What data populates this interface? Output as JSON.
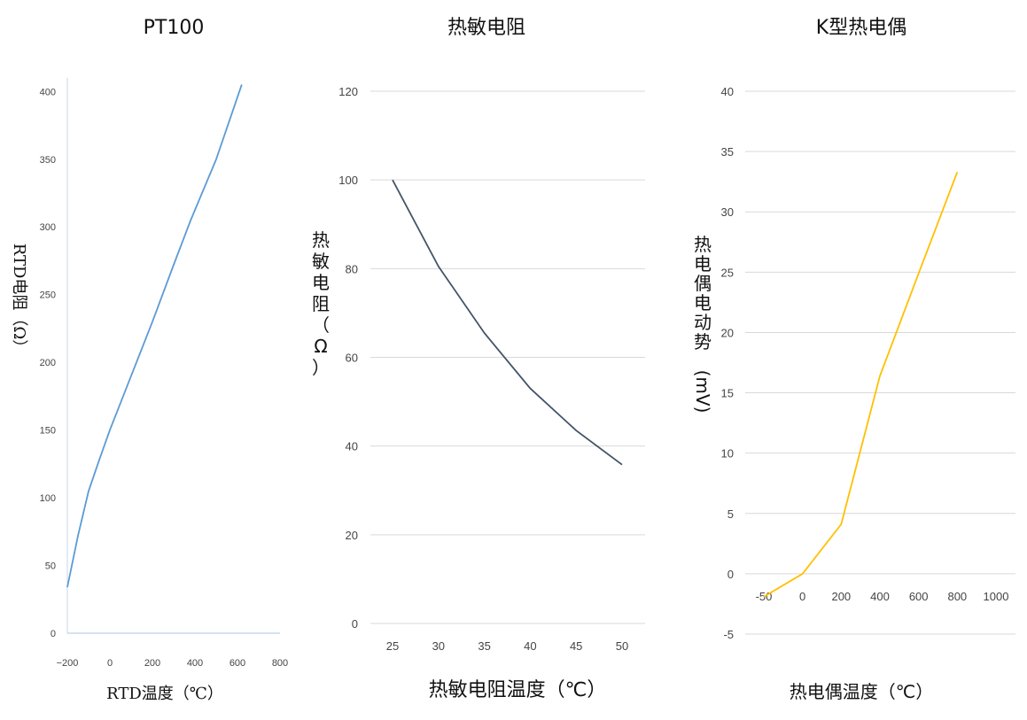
{
  "chart_data": [
    {
      "type": "line",
      "title": "PT100",
      "xlabel": "RTD温度（℃）",
      "ylabel": "RTD电阻（Ω）",
      "x_ticks": [
        "-200",
        "0",
        "200",
        "400",
        "600",
        "800"
      ],
      "y_ticks": [
        "0",
        "50",
        "100",
        "150",
        "200",
        "250",
        "300",
        "350",
        "400"
      ],
      "xlim": [
        -200,
        800
      ],
      "ylim": [
        0,
        410
      ],
      "grid": false,
      "color": "#5b9bd5",
      "series": [
        {
          "x": [
            -200,
            -150,
            -100,
            -50,
            0,
            100,
            200,
            300,
            380,
            500,
            620
          ],
          "y": [
            34,
            72,
            105,
            128,
            150,
            190,
            230,
            272,
            305,
            350,
            405
          ]
        }
      ]
    },
    {
      "type": "line",
      "title": "热敏电阻",
      "xlabel": "热敏电阻温度（℃）",
      "ylabel": "热敏电阻（Ω）",
      "x_ticks": [
        "25",
        "30",
        "35",
        "40",
        "45",
        "50"
      ],
      "y_ticks": [
        "0",
        "20",
        "40",
        "60",
        "80",
        "100",
        "120"
      ],
      "ylim": [
        0,
        120
      ],
      "grid": true,
      "color": "#44546a",
      "categories": [
        "25",
        "30",
        "35",
        "40",
        "45",
        "50"
      ],
      "series": [
        {
          "values": [
            100,
            80.5,
            65.5,
            53,
            43.5,
            35.8
          ]
        }
      ]
    },
    {
      "type": "line",
      "title": "K型热电偶",
      "xlabel": "热电偶温度（℃）",
      "ylabel": "热电偶电动势(mV)",
      "x_ticks": [
        "-50",
        "0",
        "200",
        "400",
        "600",
        "800",
        "1000"
      ],
      "y_ticks": [
        "-5",
        "0",
        "5",
        "10",
        "15",
        "20",
        "25",
        "30",
        "35",
        "40"
      ],
      "ylim": [
        -5,
        40
      ],
      "grid": true,
      "color": "#ffc000",
      "categories": [
        "-50",
        "0",
        "200",
        "400",
        "600",
        "800",
        "1000"
      ],
      "series": [
        {
          "values": [
            -1.9,
            0,
            4.1,
            16.4,
            24.9,
            33.3,
            null
          ]
        }
      ]
    }
  ]
}
